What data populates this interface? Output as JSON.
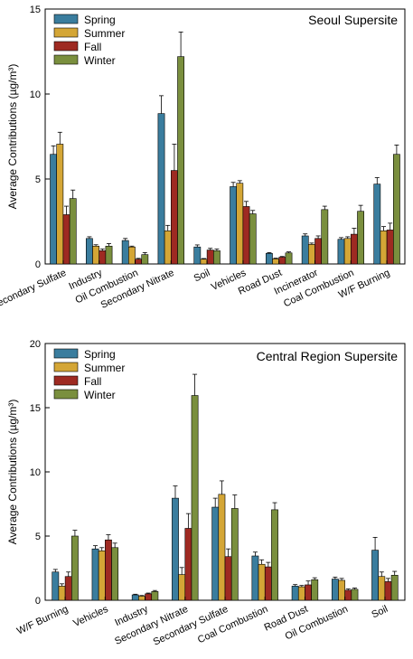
{
  "chart_data": [
    {
      "type": "bar",
      "title": "Seoul Supersite",
      "ylabel": "Average Contributions (µg/m³)",
      "ylim": [
        0,
        15
      ],
      "yticks": [
        0,
        5,
        10,
        15
      ],
      "legend_placement": "top-left",
      "grid": false,
      "categories": [
        "Secondary Sulfate",
        "Industry",
        "Oil Combustion",
        "Secondary Nitrate",
        "Soil",
        "Vehicles",
        "Road Dust",
        "Incinerator",
        "Coal Combustion",
        "W/F Burning"
      ],
      "series": [
        {
          "name": "Spring",
          "color": "#3a7d9e",
          "values": [
            6.45,
            1.5,
            1.38,
            8.85,
            1.0,
            4.55,
            0.62,
            1.65,
            1.45,
            4.7
          ],
          "errors": [
            0.5,
            0.1,
            0.12,
            1.05,
            0.12,
            0.25,
            0.05,
            0.12,
            0.1,
            0.38
          ]
        },
        {
          "name": "Summer",
          "color": "#d4a636",
          "values": [
            7.05,
            1.05,
            1.0,
            1.95,
            0.28,
            4.75,
            0.3,
            1.15,
            1.5,
            1.95
          ],
          "errors": [
            0.7,
            0.08,
            0.05,
            0.32,
            0.04,
            0.15,
            0.04,
            0.08,
            0.1,
            0.25
          ]
        },
        {
          "name": "Fall",
          "color": "#9e2a22",
          "values": [
            2.9,
            0.78,
            0.28,
            5.5,
            0.82,
            3.38,
            0.4,
            1.5,
            1.75,
            2.0
          ],
          "errors": [
            0.5,
            0.1,
            0.05,
            1.55,
            0.1,
            0.3,
            0.04,
            0.15,
            0.35,
            0.4
          ]
        },
        {
          "name": "Winter",
          "color": "#7a8f3e",
          "values": [
            3.85,
            1.05,
            0.55,
            12.2,
            0.78,
            2.95,
            0.65,
            3.2,
            3.1,
            6.45
          ],
          "errors": [
            0.5,
            0.15,
            0.12,
            1.45,
            0.1,
            0.2,
            0.06,
            0.2,
            0.35,
            0.55
          ]
        }
      ]
    },
    {
      "type": "bar",
      "title": "Central Region Supersite",
      "ylabel": "Average Contributions (µg/m³)",
      "ylim": [
        0,
        20
      ],
      "yticks": [
        0,
        5,
        10,
        15,
        20
      ],
      "legend_placement": "top-left",
      "grid": false,
      "categories": [
        "W/F Burning",
        "Vehicles",
        "Industry",
        "Secondary Nitrate",
        "Secondary Sulfate",
        "Coal Combustion",
        "Road Dust",
        "Oil Combustion",
        "Soil"
      ],
      "series": [
        {
          "name": "Spring",
          "color": "#3a7d9e",
          "values": [
            2.2,
            4.0,
            0.42,
            7.95,
            7.25,
            3.45,
            1.1,
            1.65,
            3.9
          ],
          "errors": [
            0.2,
            0.25,
            0.05,
            0.95,
            0.7,
            0.3,
            0.12,
            0.15,
            1.0
          ]
        },
        {
          "name": "Summer",
          "color": "#d4a636",
          "values": [
            1.1,
            3.85,
            0.32,
            2.0,
            8.25,
            2.8,
            1.05,
            1.55,
            1.85
          ],
          "errors": [
            0.18,
            0.25,
            0.05,
            0.55,
            1.05,
            0.35,
            0.1,
            0.15,
            0.35
          ]
        },
        {
          "name": "Fall",
          "color": "#9e2a22",
          "values": [
            1.85,
            4.7,
            0.5,
            5.6,
            3.4,
            2.6,
            1.2,
            0.78,
            1.45
          ],
          "errors": [
            0.35,
            0.4,
            0.06,
            1.15,
            0.6,
            0.35,
            0.3,
            0.1,
            0.25
          ]
        },
        {
          "name": "Winter",
          "color": "#7a8f3e",
          "values": [
            5.0,
            4.1,
            0.68,
            15.95,
            7.15,
            7.05,
            1.6,
            0.85,
            1.95
          ],
          "errors": [
            0.45,
            0.35,
            0.08,
            1.65,
            1.05,
            0.55,
            0.15,
            0.1,
            0.3
          ]
        }
      ]
    }
  ]
}
